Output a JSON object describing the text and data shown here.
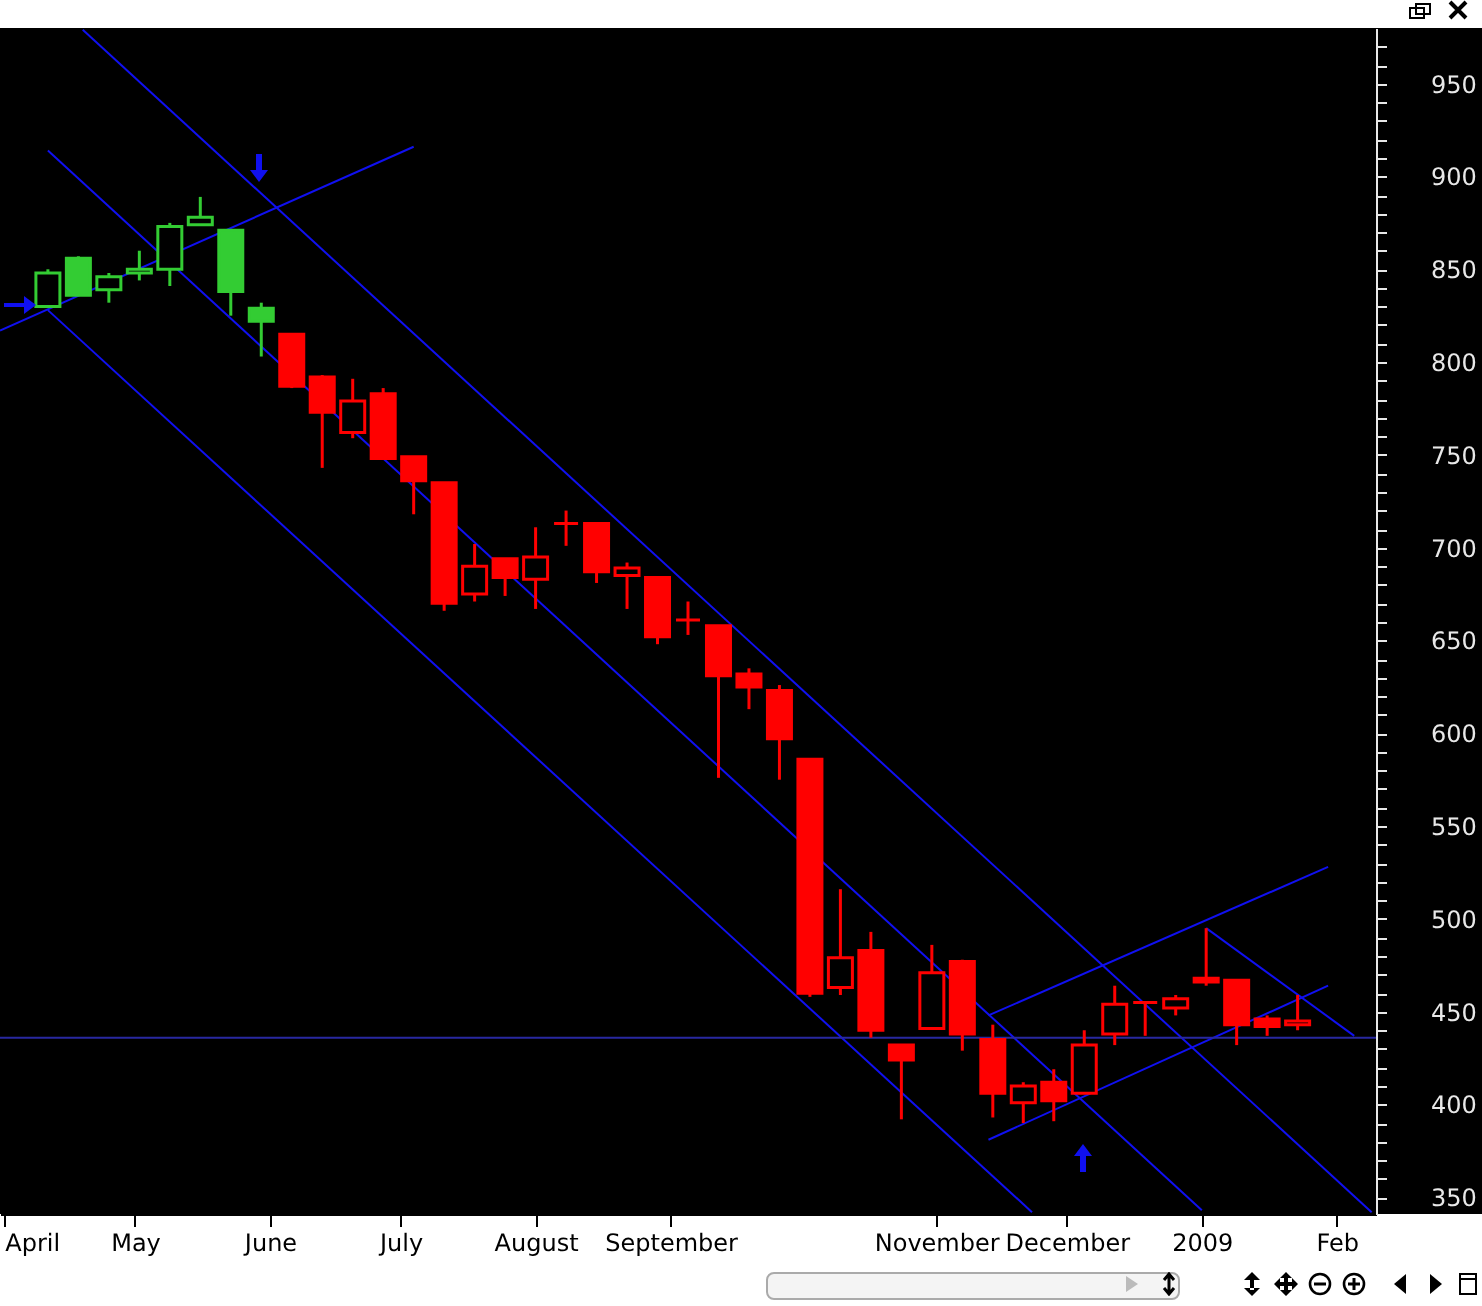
{
  "chart_data": {
    "type": "candlestick",
    "x": [
      "2008-04-11",
      "2008-04-18",
      "2008-04-25",
      "2008-05-02",
      "2008-05-09",
      "2008-05-16",
      "2008-05-23",
      "2008-05-30",
      "2008-06-06",
      "2008-06-13",
      "2008-06-20",
      "2008-06-27",
      "2008-07-04",
      "2008-07-11",
      "2008-07-18",
      "2008-07-25",
      "2008-08-01",
      "2008-08-08",
      "2008-08-15",
      "2008-08-22",
      "2008-08-29",
      "2008-09-05",
      "2008-09-12",
      "2008-09-19",
      "2008-09-26",
      "2008-10-03",
      "2008-10-10",
      "2008-10-17",
      "2008-10-24",
      "2008-10-31",
      "2008-11-07",
      "2008-11-14",
      "2008-11-21",
      "2008-11-28",
      "2008-12-05",
      "2008-12-12",
      "2008-12-19",
      "2008-12-26",
      "2009-01-02",
      "2009-01-09",
      "2009-01-16",
      "2009-01-23"
    ],
    "ohlc": [
      [
        830,
        850,
        830,
        848
      ],
      [
        856,
        857,
        836,
        836
      ],
      [
        839,
        848,
        832,
        846
      ],
      [
        848,
        860,
        844,
        850
      ],
      [
        850,
        875,
        841,
        873
      ],
      [
        874,
        889,
        874,
        878
      ],
      [
        871,
        871,
        825,
        838
      ],
      [
        829,
        832,
        803,
        822
      ],
      [
        815,
        815,
        786,
        787
      ],
      [
        792,
        793,
        743,
        773
      ],
      [
        762,
        791,
        759,
        779
      ],
      [
        783,
        786,
        748,
        748
      ],
      [
        749,
        749,
        718,
        736
      ],
      [
        735,
        735,
        666,
        670
      ],
      [
        675,
        702,
        671,
        690
      ],
      [
        694,
        694,
        674,
        684
      ],
      [
        683,
        711,
        667,
        695
      ],
      [
        713,
        720,
        701,
        713
      ],
      [
        713,
        713,
        681,
        687
      ],
      [
        685,
        692,
        667,
        689
      ],
      [
        684,
        684,
        648,
        652
      ],
      [
        661,
        671,
        653,
        661
      ],
      [
        658,
        658,
        576,
        631
      ],
      [
        632,
        635,
        613,
        625
      ],
      [
        623,
        626,
        575,
        597
      ],
      [
        586,
        586,
        458,
        460
      ],
      [
        463,
        516,
        459,
        479
      ],
      [
        483,
        493,
        436,
        440
      ],
      [
        432,
        432,
        392,
        424
      ],
      [
        441,
        486,
        441,
        471
      ],
      [
        477,
        478,
        429,
        438
      ],
      [
        435,
        443,
        393,
        406
      ],
      [
        401,
        412,
        390,
        410
      ],
      [
        412,
        419,
        391,
        402
      ],
      [
        406,
        440,
        406,
        432
      ],
      [
        438,
        464,
        432,
        454
      ],
      [
        455,
        455,
        437,
        455
      ],
      [
        452,
        459,
        448,
        457
      ],
      [
        468,
        495,
        464,
        466
      ],
      [
        467,
        467,
        432,
        443
      ],
      [
        446,
        448,
        437,
        442
      ],
      [
        443,
        459,
        440,
        445
      ]
    ],
    "colors": [
      "#33cc33",
      "#33cc33",
      "#33cc33",
      "#33cc33",
      "#33cc33",
      "#33cc33",
      "#33cc33",
      "#33cc33",
      "#ff0000",
      "#ff0000",
      "#ff0000",
      "#ff0000",
      "#ff0000",
      "#ff0000",
      "#ff0000",
      "#ff0000",
      "#ff0000",
      "#ff0000",
      "#ff0000",
      "#ff0000",
      "#ff0000",
      "#ff0000",
      "#ff0000",
      "#ff0000",
      "#ff0000",
      "#ff0000",
      "#ff0000",
      "#ff0000",
      "#ff0000",
      "#ff0000",
      "#ff0000",
      "#ff0000",
      "#ff0000",
      "#ff0000",
      "#ff0000",
      "#ff0000",
      "#ff0000",
      "#ff0000",
      "#ff0000",
      "#ff0000",
      "#ff0000",
      "#ff0000"
    ],
    "series": [
      {
        "type": "line",
        "color": "#1010f0",
        "x": [
          "2008-03-31",
          "2008-07-04"
        ],
        "values": [
          817,
          916
        ]
      },
      {
        "type": "line",
        "color": "#1010f0",
        "x": [
          "2008-04-19",
          "2009-02-09"
        ],
        "values": [
          979,
          342
        ]
      },
      {
        "type": "line",
        "color": "#1010f0",
        "x": [
          "2008-04-11",
          "2009-01-01"
        ],
        "values": [
          914,
          343
        ]
      },
      {
        "type": "line",
        "color": "#1010f0",
        "x": [
          "2008-04-11",
          "2008-11-23"
        ],
        "values": [
          828,
          342
        ]
      },
      {
        "type": "line",
        "color": "#1010f0",
        "x": [
          "2008-11-13",
          "2009-01-30"
        ],
        "values": [
          448,
          528
        ]
      },
      {
        "type": "line",
        "color": "#1010f0",
        "x": [
          "2008-11-13",
          "2009-01-30"
        ],
        "values": [
          381,
          464
        ]
      },
      {
        "type": "line",
        "color": "#1010f0",
        "x": [
          "2009-01-02",
          "2009-02-05"
        ],
        "values": [
          495,
          437
        ]
      }
    ],
    "ref_lines": [
      {
        "axis": "y",
        "value": 436,
        "color": "#2828a0"
      }
    ],
    "xlim": [
      "2008-03-31",
      "2009-02-10"
    ],
    "xticks": [
      {
        "value": "2008-04-01",
        "label": "April"
      },
      {
        "value": "2008-05-01",
        "label": "May"
      },
      {
        "value": "2008-06-01",
        "label": "June"
      },
      {
        "value": "2008-07-01",
        "label": "July"
      },
      {
        "value": "2008-08-01",
        "label": "August"
      },
      {
        "value": "2008-09-01",
        "label": "September"
      },
      {
        "value": "2008-11-01",
        "label": "November"
      },
      {
        "value": "2008-12-01",
        "label": "December"
      },
      {
        "value": "2009-01-01",
        "label": "2009"
      },
      {
        "value": "2009-02-01",
        "label": "Feb"
      }
    ],
    "ylim": [
      341,
      980
    ],
    "yticks": [
      350,
      {
        "value": 360,
        "label": null
      },
      {
        "value": 370,
        "label": null
      },
      {
        "value": 380,
        "label": null
      },
      {
        "value": 390,
        "label": null
      },
      400,
      {
        "value": 410,
        "label": null
      },
      {
        "value": 420,
        "label": null
      },
      {
        "value": 430,
        "label": null
      },
      {
        "value": 440,
        "label": null
      },
      450,
      {
        "value": 460,
        "label": null
      },
      {
        "value": 470,
        "label": null
      },
      {
        "value": 480,
        "label": null
      },
      {
        "value": 490,
        "label": null
      },
      500,
      {
        "value": 510,
        "label": null
      },
      {
        "value": 520,
        "label": null
      },
      {
        "value": 530,
        "label": null
      },
      {
        "value": 540,
        "label": null
      },
      550,
      {
        "value": 560,
        "label": null
      },
      {
        "value": 570,
        "label": null
      },
      {
        "value": 580,
        "label": null
      },
      {
        "value": 590,
        "label": null
      },
      600,
      {
        "value": 610,
        "label": null
      },
      {
        "value": 620,
        "label": null
      },
      {
        "value": 630,
        "label": null
      },
      {
        "value": 640,
        "label": null
      },
      650,
      {
        "value": 660,
        "label": null
      },
      {
        "value": 670,
        "label": null
      },
      {
        "value": 680,
        "label": null
      },
      {
        "value": 690,
        "label": null
      },
      700,
      {
        "value": 710,
        "label": null
      },
      {
        "value": 720,
        "label": null
      },
      {
        "value": 730,
        "label": null
      },
      {
        "value": 740,
        "label": null
      },
      750,
      {
        "value": 760,
        "label": null
      },
      {
        "value": 770,
        "label": null
      },
      {
        "value": 780,
        "label": null
      },
      {
        "value": 790,
        "label": null
      },
      800,
      {
        "value": 810,
        "label": null
      },
      {
        "value": 820,
        "label": null
      },
      {
        "value": 830,
        "label": null
      },
      {
        "value": 840,
        "label": null
      },
      850,
      {
        "value": 860,
        "label": null
      },
      {
        "value": 870,
        "label": null
      },
      {
        "value": 880,
        "label": null
      },
      {
        "value": 890,
        "label": null
      },
      900,
      {
        "value": 910,
        "label": null
      },
      {
        "value": 920,
        "label": null
      },
      {
        "value": 930,
        "label": null
      },
      {
        "value": 940,
        "label": null
      },
      950,
      {
        "value": 960,
        "label": null
      },
      {
        "value": 970,
        "label": null
      }
    ]
  }
}
